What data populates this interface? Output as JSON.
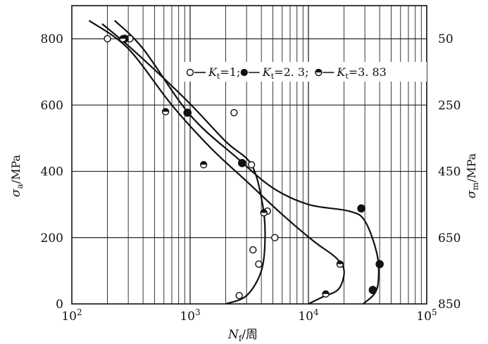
{
  "chart_data": {
    "type": "scatter",
    "x_scale": "log",
    "xlim": [
      100,
      100000
    ],
    "ylim": [
      0,
      900
    ],
    "y2lim": [
      850,
      -50
    ],
    "x_ticks": [
      {
        "value": 100,
        "label_base": "10",
        "label_exp": "2"
      },
      {
        "value": 1000,
        "label_base": "10",
        "label_exp": "3"
      },
      {
        "value": 10000,
        "label_base": "10",
        "label_exp": "4"
      },
      {
        "value": 100000,
        "label_base": "10",
        "label_exp": "5"
      }
    ],
    "y_ticks": [
      {
        "value": 0,
        "label": "0"
      },
      {
        "value": 200,
        "label": "200"
      },
      {
        "value": 400,
        "label": "400"
      },
      {
        "value": 600,
        "label": "600"
      },
      {
        "value": 800,
        "label": "800"
      }
    ],
    "y2_ticks": [
      {
        "value": 50,
        "label": "50"
      },
      {
        "value": 250,
        "label": "250"
      },
      {
        "value": 450,
        "label": "450"
      },
      {
        "value": 650,
        "label": "650"
      },
      {
        "value": 850,
        "label": "850"
      }
    ],
    "ylabel": {
      "symbol": "σ",
      "sub": "a",
      "unit": "/MPa"
    },
    "y2label": {
      "symbol": "σ",
      "sub": "m",
      "unit": "/MPa"
    },
    "xlabel": {
      "symbol": "N",
      "sub": "f",
      "unit": "/周"
    },
    "legend": {
      "placement": "top-right",
      "entries": [
        {
          "marker": "open",
          "symbol": "K",
          "sub": "t",
          "value_text": "=1",
          "sep": ";"
        },
        {
          "marker": "solid",
          "symbol": "K",
          "sub": "t",
          "value_text": "=2. 3",
          "sep": ";"
        },
        {
          "marker": "half",
          "symbol": "K",
          "sub": "t",
          "value_text": "=3. 83",
          "sep": ""
        }
      ]
    },
    "series": [
      {
        "marker": "open",
        "points": [
          [
            200,
            800
          ],
          [
            310,
            800
          ],
          [
            2350,
            577
          ],
          [
            3300,
            420
          ],
          [
            4500,
            280
          ],
          [
            5200,
            200
          ],
          [
            3400,
            163
          ],
          [
            3800,
            120
          ],
          [
            2600,
            25
          ]
        ],
        "curve": [
          [
            180,
            845
          ],
          [
            320,
            770
          ],
          [
            900,
            620
          ],
          [
            2000,
            490
          ],
          [
            3300,
            420
          ],
          [
            4100,
            300
          ],
          [
            4300,
            200
          ],
          [
            4000,
            100
          ],
          [
            3000,
            25
          ],
          [
            2000,
            0
          ]
        ]
      },
      {
        "marker": "solid",
        "points": [
          [
            280,
            800
          ],
          [
            950,
            577
          ],
          [
            2750,
            425
          ],
          [
            28000,
            288
          ],
          [
            40000,
            120
          ],
          [
            35000,
            42
          ]
        ],
        "curve": [
          [
            230,
            855
          ],
          [
            400,
            770
          ],
          [
            1000,
            570
          ],
          [
            2500,
            440
          ],
          [
            5000,
            350
          ],
          [
            10000,
            300
          ],
          [
            22000,
            280
          ],
          [
            30000,
            250
          ],
          [
            38000,
            150
          ],
          [
            39000,
            70
          ],
          [
            36000,
            30
          ],
          [
            29000,
            0
          ]
        ]
      },
      {
        "marker": "half",
        "points": [
          [
            270,
            800
          ],
          [
            620,
            580
          ],
          [
            1300,
            420
          ],
          [
            4200,
            275
          ],
          [
            18500,
            120
          ],
          [
            14000,
            30
          ]
        ],
        "curve": [
          [
            140,
            855
          ],
          [
            300,
            770
          ],
          [
            700,
            600
          ],
          [
            1500,
            470
          ],
          [
            3000,
            370
          ],
          [
            6000,
            270
          ],
          [
            11000,
            190
          ],
          [
            17000,
            140
          ],
          [
            20000,
            100
          ],
          [
            18000,
            45
          ],
          [
            13000,
            20
          ],
          [
            10000,
            0
          ]
        ]
      }
    ]
  }
}
